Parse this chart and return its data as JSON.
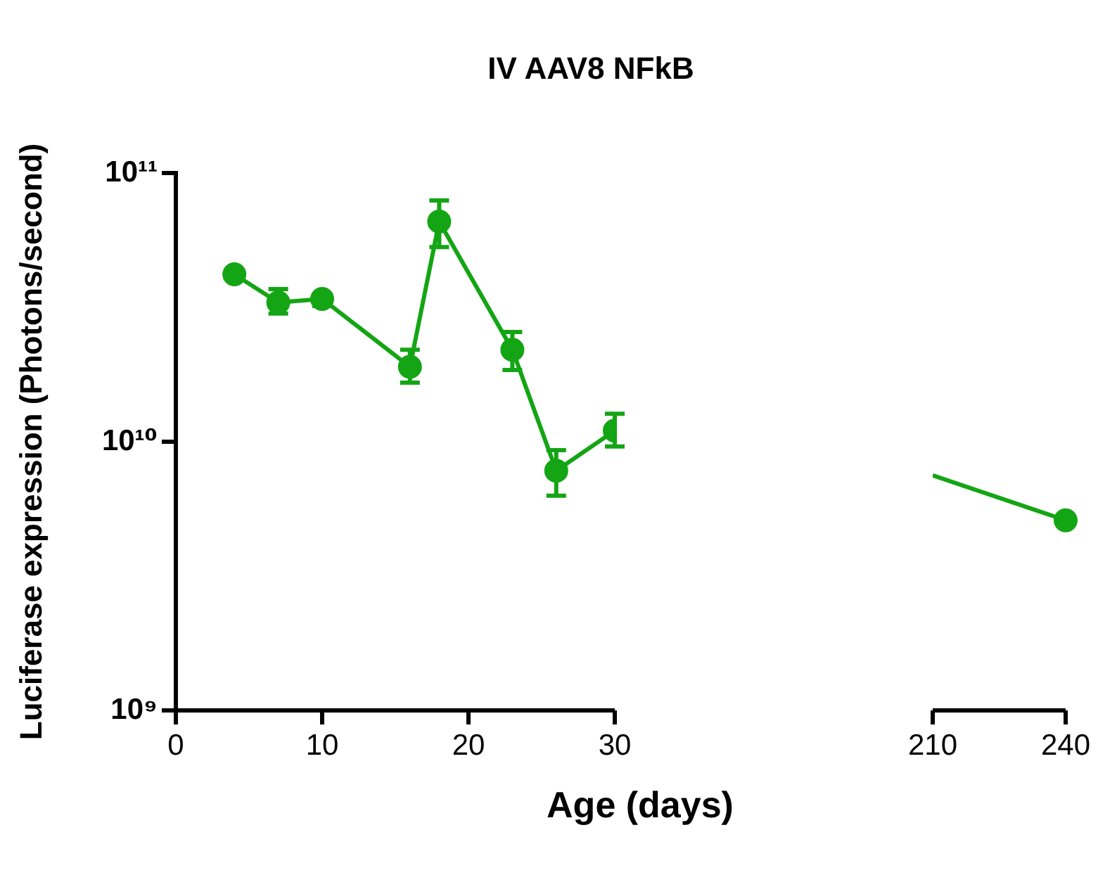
{
  "chart_data": [
    {
      "type": "line",
      "title": "IV AAV8 NFkB",
      "xlabel": "Age (days)",
      "ylabel": "Luciferase expression (Photons/second)",
      "x": [
        4,
        7,
        10,
        16,
        18,
        23,
        26,
        30
      ],
      "values": [
        42000000000.0,
        33000000000.0,
        34000000000.0,
        19000000000.0,
        66000000000.0,
        22000000000.0,
        7800000000.0,
        11000000000.0
      ],
      "errors": [
        null,
        [
          30000000000.0,
          37000000000.0
        ],
        [
          32000000000.0,
          34000000000.0
        ],
        [
          16600000000.0,
          22000000000.0
        ],
        [
          53000000000.0,
          79000000000.0
        ],
        [
          18500000000.0,
          25600000000.0
        ],
        [
          6300000000.0,
          9300000000.0
        ],
        [
          9600000000.0,
          12700000000.0
        ]
      ],
      "color": "#14a514",
      "marker": "circle",
      "line_style": "solid",
      "log": "y",
      "xlim": [
        0,
        30
      ],
      "xticks": [
        0,
        10,
        20,
        30
      ],
      "ylim": [
        1000000000.0,
        100000000000.0
      ],
      "yticks": [
        {
          "value": 1000000000.0,
          "label": "10⁹"
        },
        {
          "value": 10000000000.0,
          "label": "10¹⁰"
        },
        {
          "value": 100000000000.0,
          "label": "10¹¹"
        }
      ]
    },
    {
      "type": "line",
      "x": [
        210,
        240
      ],
      "series": [
        {
          "type": "line",
          "values": [
            7500000000.0,
            5100000000.0
          ],
          "color": "#14a514",
          "marker": "none",
          "line_style": "solid"
        },
        {
          "type": "scatter",
          "values": [
            null,
            5100000000.0
          ],
          "color": "#14a514",
          "marker": "circle"
        }
      ],
      "log": "y",
      "xlim": [
        210,
        240
      ],
      "xticks": [
        210,
        240
      ],
      "ylim": [
        1000000000.0,
        100000000000.0
      ],
      "tick_labels": "x"
    }
  ]
}
